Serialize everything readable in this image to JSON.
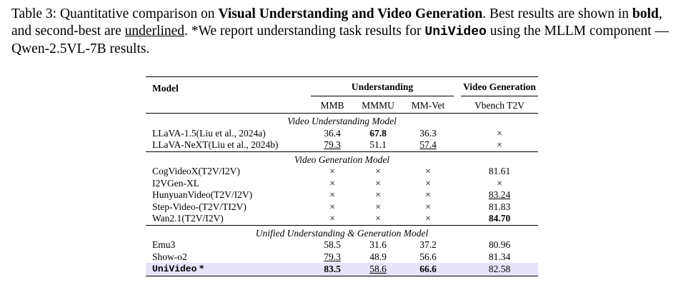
{
  "caption": {
    "prefix": "Table 3: Quantitative comparison on ",
    "bold_title": "Visual Understanding and Video Generation",
    "s1": ". Best results are shown in ",
    "bold_word": "bold",
    "s2": ", and second-best are ",
    "underlined_word": "underlined",
    "s3": ". *We report understanding task results for ",
    "model_mono": "UniVideo",
    "s4": " using the MLLM component — Qwen-2.5VL-7B results."
  },
  "table": {
    "header": {
      "model": "Model",
      "understanding": "Understanding",
      "video_generation": "Video Generation",
      "mmb": "MMB",
      "mmmu": "MMMU",
      "mmvet": "MM-Vet",
      "vbench": "Vbench T2V"
    },
    "sections": [
      {
        "title": "Video Understanding Model",
        "rows": [
          {
            "model": "LLaVA-1.5(Liu et al., 2024a)",
            "mmb": "36.4",
            "mmmu": "67.8",
            "mmvet": "36.3",
            "vbench": "×"
          },
          {
            "model": "LLaVA-NeXT(Liu et al., 2024b)",
            "mmb": "79.3",
            "mmmu": "51.1",
            "mmvet": "57.4",
            "vbench": "×"
          }
        ]
      },
      {
        "title": "Video Generation Model",
        "rows": [
          {
            "model": "CogVideoX(T2V/I2V)",
            "mmb": "×",
            "mmmu": "×",
            "mmvet": "×",
            "vbench": "81.61"
          },
          {
            "model": "I2VGen-XL",
            "mmb": "×",
            "mmmu": "×",
            "mmvet": "×",
            "vbench": "×"
          },
          {
            "model": "HunyuanVideo(T2V/I2V)",
            "mmb": "×",
            "mmmu": "×",
            "mmvet": "×",
            "vbench": "83.24"
          },
          {
            "model": "Step-Video-(T2V/TI2V)",
            "mmb": "×",
            "mmmu": "×",
            "mmvet": "×",
            "vbench": "81.83"
          },
          {
            "model": "Wan2.1(T2V/I2V)",
            "mmb": "×",
            "mmmu": "×",
            "mmvet": "×",
            "vbench": "84.70"
          }
        ]
      },
      {
        "title": "Unified Understanding & Generation Model",
        "rows": [
          {
            "model": "Emu3",
            "mmb": "58.5",
            "mmmu": "31.6",
            "mmvet": "37.2",
            "vbench": "80.96"
          },
          {
            "model": "Show-o2",
            "mmb": "79.3",
            "mmmu": "48.9",
            "mmvet": "56.6",
            "vbench": "81.34"
          },
          {
            "model": "UniVideo",
            "model_suffix": " *",
            "mmb": "83.5",
            "mmmu": "58.6",
            "mmvet": "66.6",
            "vbench": "82.58"
          }
        ]
      }
    ],
    "highlight_color": "#e6e3fb"
  }
}
